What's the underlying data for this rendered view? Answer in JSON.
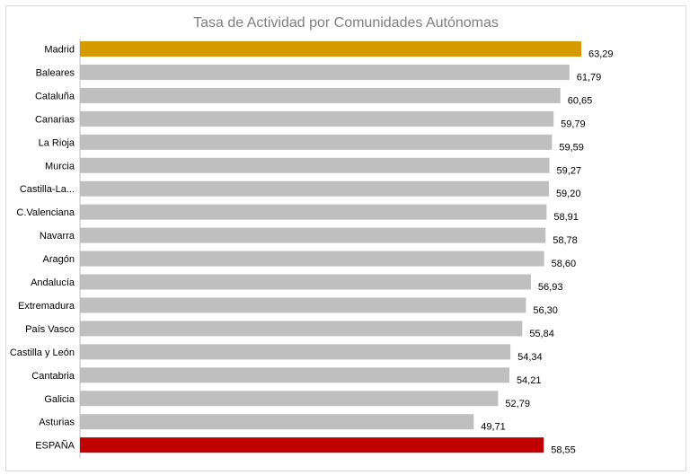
{
  "chart_data": {
    "type": "bar",
    "orientation": "horizontal",
    "title": "Tasa de Actividad por Comunidades  Autónomas",
    "categories": [
      "Madrid",
      "Baleares",
      "Cataluña",
      "Canarias",
      "La Rioja",
      "Murcia",
      "Castilla-La...",
      "C.Valenciana",
      "Navarra",
      "Aragón",
      "Andalucía",
      "Extremadura",
      "País Vasco",
      "Castilla y León",
      "Cantabria",
      "Galicia",
      "Asturias",
      "ESPAÑA"
    ],
    "values": [
      63.29,
      61.79,
      60.65,
      59.79,
      59.59,
      59.27,
      59.2,
      58.91,
      58.78,
      58.6,
      56.93,
      56.3,
      55.84,
      54.34,
      54.21,
      52.79,
      49.71,
      58.55
    ],
    "value_labels": [
      "63,29",
      "61,79",
      "60,65",
      "59,79",
      "59,59",
      "59,27",
      "59,20",
      "58,91",
      "58,78",
      "58,60",
      "56,93",
      "56,30",
      "55,84",
      "54,34",
      "54,21",
      "52,79",
      "49,71",
      "58,55"
    ],
    "colors": {
      "default": "#bfbfbf",
      "highlight": "#d49a00",
      "total": "#c00000"
    },
    "bar_colors": [
      "highlight",
      "default",
      "default",
      "default",
      "default",
      "default",
      "default",
      "default",
      "default",
      "default",
      "default",
      "default",
      "default",
      "default",
      "default",
      "default",
      "default",
      "total"
    ],
    "grid": false,
    "legend": "none"
  }
}
